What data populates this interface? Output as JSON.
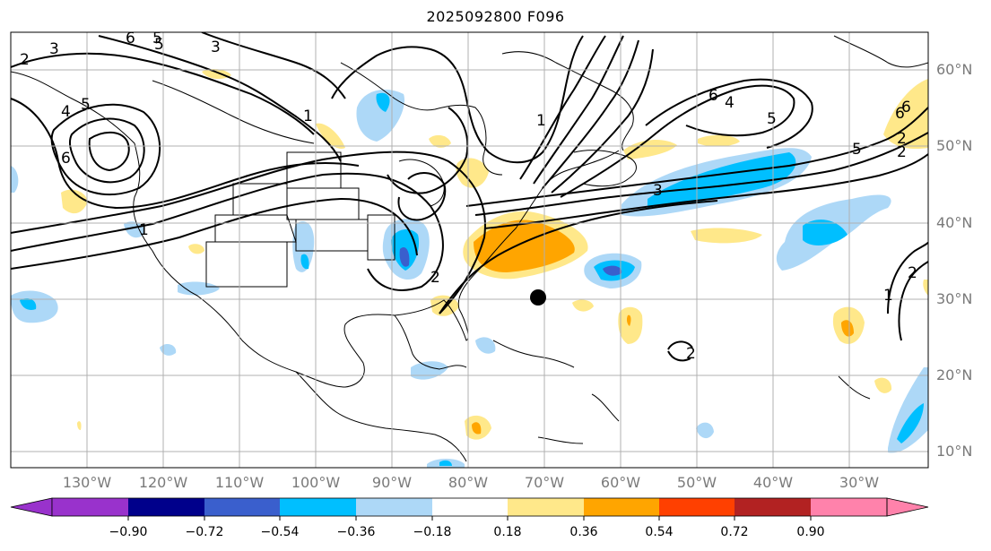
{
  "title": "2025092800 F096",
  "lat_labels": [
    "60°N",
    "50°N",
    "40°N",
    "30°N",
    "20°N",
    "10°N"
  ],
  "lon_labels": [
    "130°W",
    "120°W",
    "110°W",
    "100°W",
    "90°W",
    "80°W",
    "70°W",
    "60°W",
    "50°W",
    "40°W",
    "30°W"
  ],
  "colorbar": {
    "ticks": [
      "−0.90",
      "−0.72",
      "−0.54",
      "−0.36",
      "−0.18",
      "0.18",
      "0.36",
      "0.54",
      "0.72",
      "0.90"
    ],
    "colors": {
      "under": "#9932cc",
      "c1": "#00008b",
      "c2": "#3a5fcd",
      "c3": "#00bfff",
      "c4": "#add8f7",
      "c5": "#ffffff",
      "c6": "#ffe88a",
      "c7": "#ffa500",
      "c8": "#ff4000",
      "c9": "#b22222",
      "over": "#ff82ab"
    }
  },
  "contour_labels": [
    "2",
    "3",
    "6",
    "5",
    "3",
    "4",
    "5",
    "6",
    "1",
    "1",
    "2",
    "6",
    "4",
    "5",
    "6",
    "5",
    "2",
    "3",
    "1",
    "2",
    "1",
    "2",
    "5",
    "2",
    "6"
  ],
  "marker": {
    "label": "circle-marker",
    "lon": -70.5,
    "lat": 30.5
  }
}
